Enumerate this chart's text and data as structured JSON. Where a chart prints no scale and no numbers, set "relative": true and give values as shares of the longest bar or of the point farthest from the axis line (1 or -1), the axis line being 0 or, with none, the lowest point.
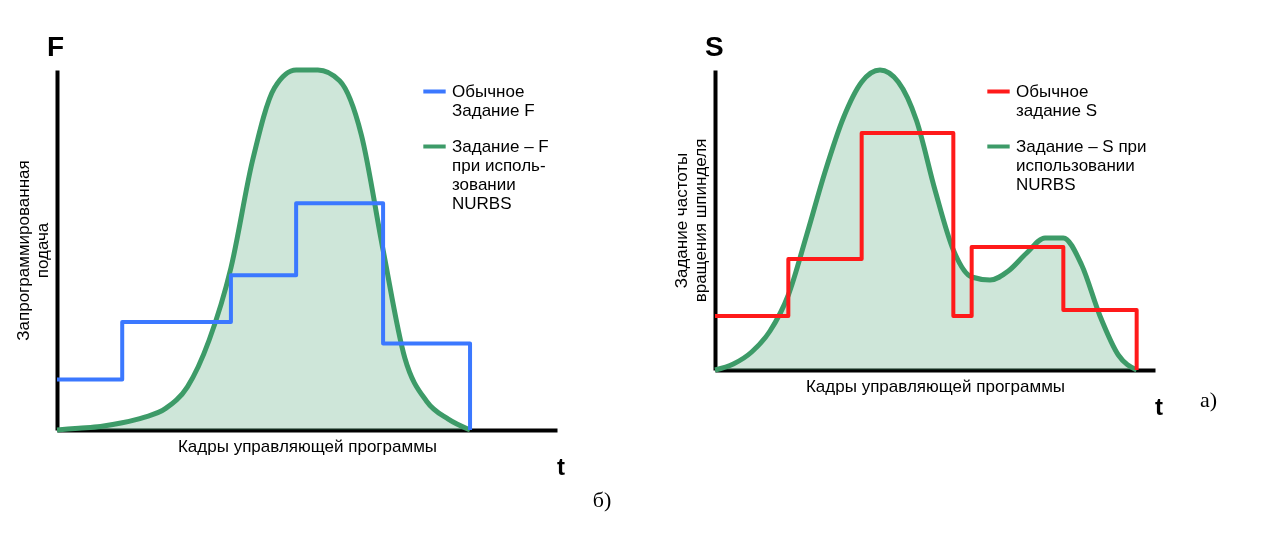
{
  "chart_data": [
    {
      "type": "step",
      "relative": true,
      "tick_labels": false,
      "legend": "top right",
      "xlabel": "Кадры управляющей программы",
      "ylabel": "Запрограммированная\nподача",
      "annotations": [
        "F",
        "t",
        "б)"
      ],
      "categories": [
        null,
        null,
        null,
        null,
        null,
        null,
        null,
        null,
        null,
        null,
        null,
        null,
        null,
        null,
        null,
        null,
        null,
        null,
        null,
        null,
        null,
        null,
        null,
        null
      ],
      "series": [
        {
          "name": "Обычное\nЗадание F",
          "color": "#3b78ff",
          "values": [
            0.14,
            0.14,
            0.14,
            0.3,
            0.3,
            0.3,
            0.3,
            0.3,
            0.43,
            0.43,
            0.43,
            0.63,
            0.63,
            0.63,
            0.63,
            0.24,
            0.24,
            0.24,
            0.24,
            0,
            null,
            null,
            null,
            null
          ]
        },
        {
          "name": "Задание – F\nпри исполь-\nзовании\nNURBS",
          "type": "area",
          "color": "#3d9b68",
          "values": [
            0,
            0.005,
            0.01,
            0.02,
            0.035,
            0.06,
            0.12,
            0.25,
            0.45,
            0.75,
            0.95,
            1.0,
            1.0,
            0.97,
            0.82,
            0.5,
            0.2,
            0.08,
            0.03,
            0,
            null,
            null,
            null,
            null
          ]
        }
      ]
    },
    {
      "type": "step",
      "relative": true,
      "tick_labels": false,
      "legend": "top right",
      "xlabel": "Кадры управляющей программы",
      "ylabel": "Задание частоты\nвращения шпинделя",
      "annotations": [
        "S",
        "t",
        "а)"
      ],
      "categories": [
        null,
        null,
        null,
        null,
        null,
        null,
        null,
        null,
        null,
        null,
        null,
        null,
        null,
        null,
        null,
        null,
        null,
        null,
        null,
        null,
        null,
        null,
        null,
        null,
        null
      ],
      "series": [
        {
          "name": "Обычное\nзадание S",
          "color": "#ff1a1a",
          "values": [
            0.18,
            0.18,
            0.18,
            0.18,
            0.37,
            0.37,
            0.37,
            0.37,
            0.79,
            0.79,
            0.79,
            0.79,
            0.79,
            0.18,
            0.41,
            0.41,
            0.41,
            0.41,
            0.41,
            0.2,
            0.2,
            0.2,
            0.2,
            0,
            null
          ]
        },
        {
          "name": "Задание – S при\nиспользовании\nNURBS",
          "type": "area",
          "color": "#3d9b68",
          "values": [
            0,
            0.02,
            0.06,
            0.13,
            0.25,
            0.45,
            0.66,
            0.84,
            0.96,
            1.0,
            0.96,
            0.83,
            0.6,
            0.4,
            0.31,
            0.3,
            0.33,
            0.39,
            0.44,
            0.44,
            0.35,
            0.18,
            0.05,
            0,
            null
          ]
        }
      ]
    }
  ]
}
